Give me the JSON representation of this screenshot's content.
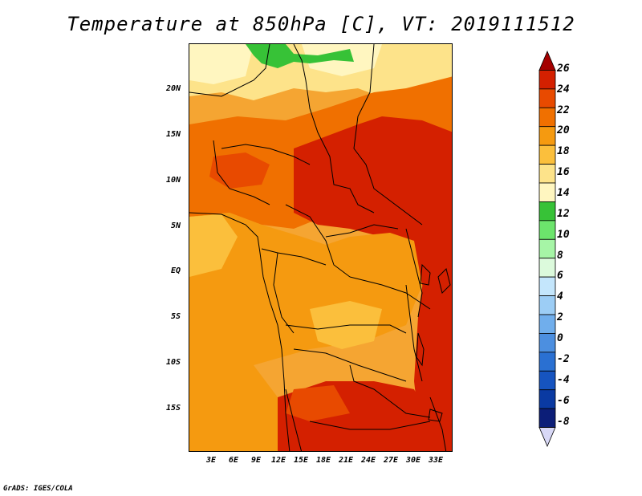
{
  "title": "Temperature at 850hPa [C], VT: 2019111512",
  "footer": "GrADS: IGES/COLA",
  "lat_labels": [
    "20N",
    "15N",
    "10N",
    "5N",
    "EQ",
    "5S",
    "10S",
    "15S"
  ],
  "lon_labels": [
    "3E",
    "6E",
    "9E",
    "12E",
    "15E",
    "18E",
    "21E",
    "24E",
    "27E",
    "30E",
    "33E"
  ],
  "colorbar": {
    "labels": [
      "26",
      "24",
      "22",
      "20",
      "18",
      "16",
      "14",
      "12",
      "10",
      "8",
      "6",
      "4",
      "2",
      "0",
      "-2",
      "-4",
      "-6",
      "-8"
    ],
    "colors": [
      "#a40000",
      "#d42000",
      "#e84a00",
      "#f07000",
      "#f59a10",
      "#fbbf3c",
      "#fde38a",
      "#fff6c0",
      "#37c237",
      "#6ce46c",
      "#a6f5a6",
      "#dcfadc",
      "#c4e6fc",
      "#9ccdf5",
      "#70aeec",
      "#4c8fe0",
      "#2a70d2",
      "#1654c0",
      "#0a3aa2",
      "#0c1e78",
      "#d8d8f6"
    ]
  }
}
